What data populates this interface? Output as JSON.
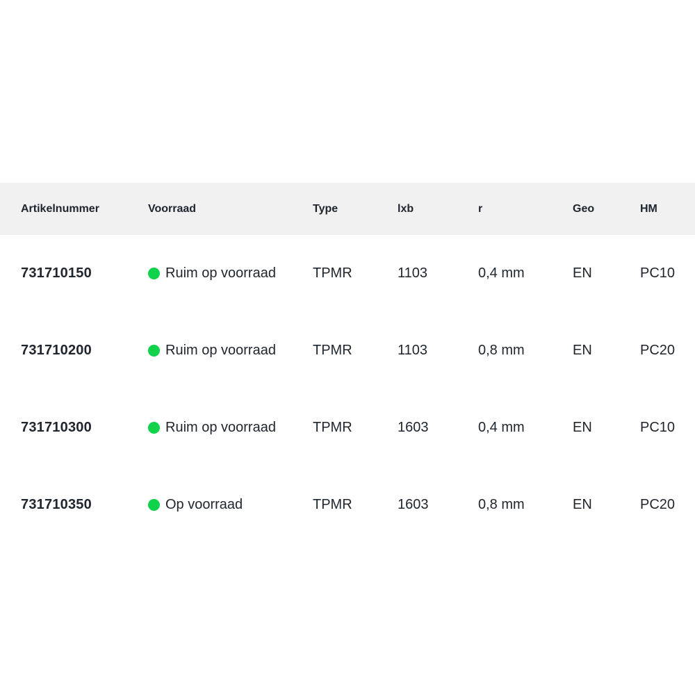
{
  "colors": {
    "header_background": "#f1f1f2",
    "text": "#20262e",
    "stock_green": "#10d24b"
  },
  "table": {
    "columns": [
      "Artikelnummer",
      "Voorraad",
      "Type",
      "lxb",
      "r",
      "Geo",
      "HM"
    ],
    "rows": [
      {
        "artikelnummer": "731710150",
        "voorraad": "Ruim op voorraad",
        "type": "TPMR",
        "lxb": "1103",
        "r": "0,4 mm",
        "geo": "EN",
        "hm": "PC10"
      },
      {
        "artikelnummer": "731710200",
        "voorraad": "Ruim op voorraad",
        "type": "TPMR",
        "lxb": "1103",
        "r": "0,8 mm",
        "geo": "EN",
        "hm": "PC20"
      },
      {
        "artikelnummer": "731710300",
        "voorraad": "Ruim op voorraad",
        "type": "TPMR",
        "lxb": "1603",
        "r": "0,4 mm",
        "geo": "EN",
        "hm": "PC10"
      },
      {
        "artikelnummer": "731710350",
        "voorraad": "Op voorraad",
        "type": "TPMR",
        "lxb": "1603",
        "r": "0,8 mm",
        "geo": "EN",
        "hm": "PC20"
      }
    ]
  }
}
